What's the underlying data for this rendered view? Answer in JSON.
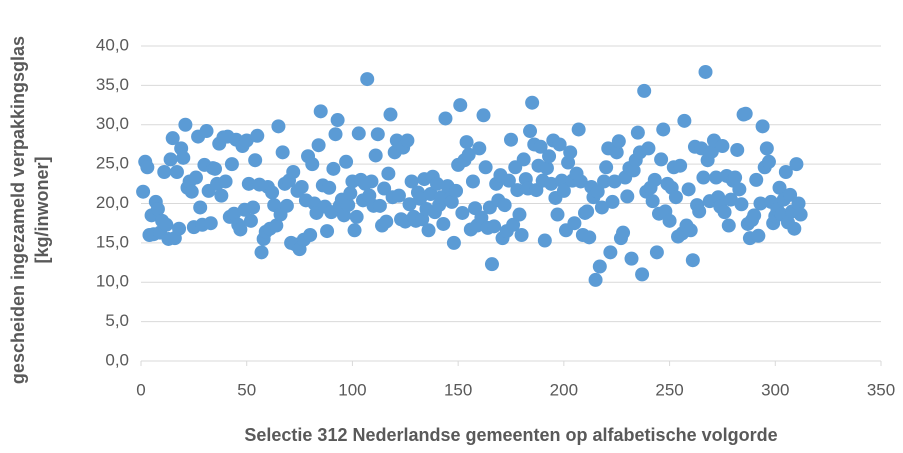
{
  "chart_data": {
    "type": "scatter",
    "x_label": "Selectie 312 Nederlandse gemeenten op alfabetische volgorde",
    "y_label": [
      "gescheiden ingezameld verpakkingsglas",
      "[kg/inwoner]"
    ],
    "color": "#5b9bd5",
    "grid": true,
    "xlim": [
      0,
      350
    ],
    "xticks": [
      0,
      50,
      100,
      150,
      200,
      250,
      300,
      350
    ],
    "ylim": [
      0,
      40
    ],
    "yticks": [
      {
        "value": 0,
        "label": "0,0"
      },
      {
        "value": 5,
        "label": "5,0"
      },
      {
        "value": 10,
        "label": "10,0"
      },
      {
        "value": 15,
        "label": "15,0"
      },
      {
        "value": 20,
        "label": "20,0"
      },
      {
        "value": 25,
        "label": "25,0"
      },
      {
        "value": 30,
        "label": "30,0"
      },
      {
        "value": 35,
        "label": "35,0"
      },
      {
        "value": 40,
        "label": "40,0"
      }
    ],
    "x": [
      1,
      2,
      3,
      4,
      5,
      6,
      7,
      8,
      9,
      10,
      11,
      12,
      13,
      14,
      15,
      16,
      17,
      18,
      19,
      20,
      21,
      22,
      23,
      24,
      25,
      26,
      27,
      28,
      29,
      30,
      31,
      32,
      33,
      34,
      35,
      36,
      37,
      38,
      39,
      40,
      41,
      42,
      43,
      44,
      45,
      46,
      47,
      48,
      49,
      50,
      51,
      52,
      53,
      54,
      55,
      56,
      57,
      58,
      59,
      60,
      61,
      62,
      63,
      64,
      65,
      66,
      67,
      68,
      69,
      70,
      71,
      72,
      73,
      74,
      75,
      76,
      77,
      78,
      79,
      80,
      81,
      82,
      83,
      84,
      85,
      86,
      87,
      88,
      89,
      90,
      91,
      92,
      93,
      94,
      95,
      96,
      97,
      98,
      99,
      100,
      101,
      102,
      103,
      104,
      105,
      106,
      107,
      108,
      109,
      110,
      111,
      112,
      113,
      114,
      115,
      116,
      117,
      118,
      119,
      120,
      121,
      122,
      123,
      124,
      125,
      126,
      127,
      128,
      129,
      130,
      131,
      132,
      133,
      134,
      135,
      136,
      137,
      138,
      139,
      140,
      141,
      142,
      143,
      144,
      145,
      146,
      147,
      148,
      149,
      150,
      151,
      152,
      153,
      154,
      155,
      156,
      157,
      158,
      159,
      160,
      161,
      162,
      163,
      164,
      165,
      166,
      167,
      168,
      169,
      170,
      171,
      172,
      173,
      174,
      175,
      176,
      177,
      178,
      179,
      180,
      181,
      182,
      183,
      184,
      185,
      186,
      187,
      188,
      189,
      190,
      191,
      192,
      193,
      194,
      195,
      196,
      197,
      198,
      199,
      200,
      201,
      202,
      203,
      204,
      205,
      206,
      207,
      208,
      209,
      210,
      211,
      212,
      213,
      214,
      215,
      216,
      217,
      218,
      219,
      220,
      221,
      222,
      223,
      224,
      225,
      226,
      227,
      228,
      229,
      230,
      231,
      232,
      233,
      234,
      235,
      236,
      237,
      238,
      239,
      240,
      241,
      242,
      243,
      244,
      245,
      246,
      247,
      248,
      249,
      250,
      251,
      252,
      253,
      254,
      255,
      256,
      257,
      258,
      259,
      260,
      261,
      262,
      263,
      264,
      265,
      266,
      267,
      268,
      269,
      270,
      271,
      272,
      273,
      274,
      275,
      276,
      277,
      278,
      279,
      280,
      281,
      282,
      283,
      284,
      285,
      286,
      287,
      288,
      289,
      290,
      291,
      292,
      293,
      294,
      295,
      296,
      297,
      298,
      299,
      300,
      301,
      302,
      303,
      304,
      305,
      306,
      307,
      308,
      309,
      310,
      311,
      312
    ],
    "values": [
      21.5,
      25.3,
      24.6,
      16.0,
      18.5,
      16.1,
      20.2,
      19.3,
      16.3,
      17.8,
      24.0,
      17.3,
      15.5,
      25.6,
      28.3,
      15.6,
      24.0,
      16.8,
      27.0,
      25.8,
      30.0,
      22.0,
      22.8,
      21.5,
      17.0,
      23.3,
      28.5,
      19.5,
      17.3,
      24.9,
      29.2,
      21.6,
      17.5,
      24.5,
      24.4,
      22.5,
      27.6,
      21.0,
      28.4,
      22.8,
      28.5,
      18.3,
      25.0,
      18.7,
      28.1,
      17.3,
      16.7,
      27.3,
      19.2,
      28.0,
      22.5,
      17.8,
      19.5,
      25.5,
      28.6,
      22.4,
      13.8,
      15.5,
      16.4,
      22.1,
      16.8,
      21.4,
      19.8,
      17.2,
      29.8,
      18.6,
      26.5,
      22.5,
      19.7,
      22.9,
      15.0,
      24.0,
      14.8,
      21.6,
      14.2,
      22.1,
      15.4,
      20.4,
      26.0,
      16.0,
      25.0,
      20.0,
      18.8,
      27.4,
      31.7,
      22.3,
      19.6,
      16.5,
      22.0,
      18.9,
      24.4,
      28.8,
      30.6,
      19.7,
      20.5,
      18.5,
      25.3,
      19.8,
      21.3,
      22.8,
      16.6,
      18.3,
      28.9,
      23.0,
      20.4,
      22.5,
      35.8,
      21.0,
      22.8,
      19.7,
      26.1,
      28.8,
      19.7,
      17.2,
      21.9,
      17.7,
      23.8,
      31.3,
      20.8,
      26.5,
      28.0,
      21.0,
      18.0,
      27.1,
      17.7,
      28.0,
      19.9,
      22.8,
      18.3,
      17.8,
      21.4,
      20.6,
      18.0,
      23.1,
      19.3,
      16.6,
      21.2,
      23.4,
      18.9,
      22.5,
      19.8,
      20.8,
      17.4,
      30.8,
      22.2,
      20.6,
      20.2,
      15.0,
      21.6,
      24.9,
      32.5,
      18.8,
      25.5,
      27.8,
      26.2,
      16.7,
      22.8,
      19.4,
      17.2,
      27.0,
      18.2,
      31.2,
      24.6,
      16.9,
      19.5,
      12.3,
      17.1,
      22.5,
      20.4,
      23.6,
      15.6,
      19.8,
      16.5,
      22.9,
      28.1,
      17.3,
      24.6,
      21.7,
      18.6,
      16.0,
      25.6,
      23.1,
      21.9,
      29.2,
      32.8,
      27.5,
      21.7,
      24.8,
      27.2,
      22.9,
      15.3,
      24.5,
      26.0,
      22.5,
      28.0,
      20.7,
      18.6,
      27.5,
      22.9,
      21.6,
      16.6,
      25.2,
      26.5,
      22.9,
      17.5,
      23.8,
      29.4,
      22.8,
      16.0,
      18.8,
      19.0,
      15.7,
      22.1,
      20.8,
      10.3,
      21.5,
      12.0,
      19.5,
      22.8,
      24.6,
      27.0,
      13.8,
      20.2,
      22.8,
      26.5,
      27.9,
      15.6,
      16.3,
      23.3,
      20.9,
      24.5,
      13.0,
      24.2,
      25.5,
      29.0,
      26.5,
      11.0,
      34.3,
      21.5,
      27.0,
      22.0,
      20.3,
      23.0,
      13.8,
      18.7,
      25.6,
      29.4,
      19.0,
      22.5,
      17.8,
      22.0,
      24.6,
      20.8,
      15.8,
      24.8,
      16.2,
      30.5,
      17.2,
      21.8,
      16.6,
      12.8,
      27.2,
      19.8,
      19.0,
      27.0,
      23.3,
      36.7,
      25.5,
      20.3,
      26.6,
      28.0,
      23.3,
      20.8,
      19.6,
      27.3,
      18.9,
      23.5,
      17.2,
      20.5,
      22.9,
      23.3,
      26.8,
      21.8,
      19.9,
      31.3,
      31.4,
      17.4,
      15.6,
      17.9,
      18.5,
      23.0,
      15.9,
      20.0,
      29.8,
      24.6,
      27.0,
      25.3,
      20.2,
      17.5,
      18.4,
      19.2,
      22.0,
      18.6,
      20.5,
      24.0,
      17.6,
      21.1,
      19.0,
      16.8,
      25.0,
      20.0,
      18.6
    ]
  }
}
